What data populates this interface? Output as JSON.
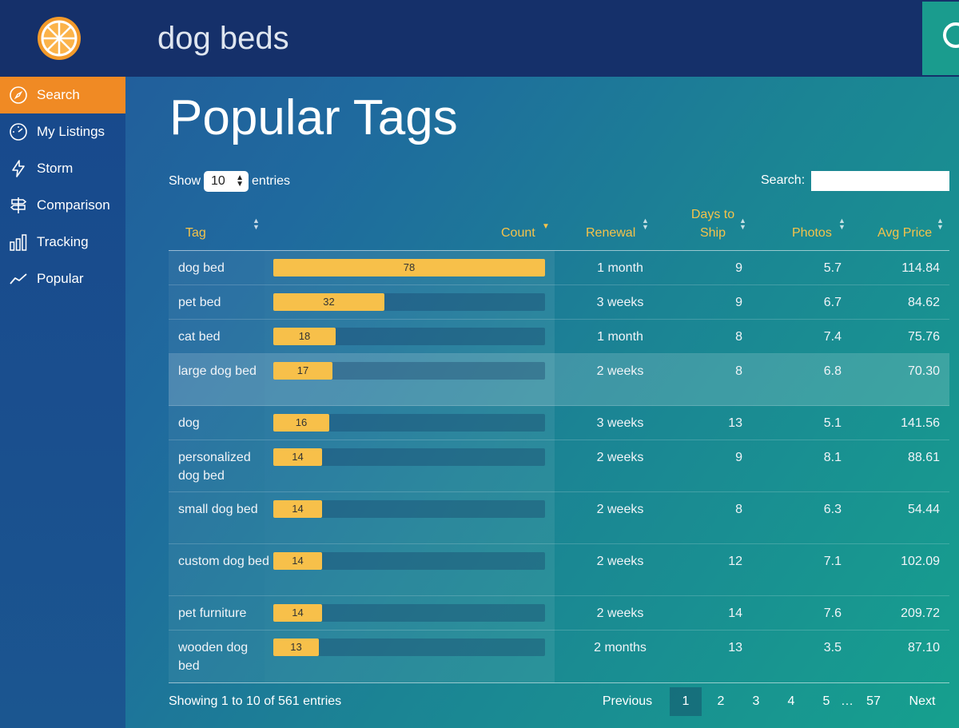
{
  "app": {
    "search_query": "dog beds"
  },
  "sidebar": {
    "items": [
      {
        "label": "Search",
        "icon": "compass-icon",
        "active": true
      },
      {
        "label": "My Listings",
        "icon": "speedometer-icon",
        "active": false
      },
      {
        "label": "Storm",
        "icon": "lightning-icon",
        "active": false
      },
      {
        "label": "Comparison",
        "icon": "signpost-icon",
        "active": false
      },
      {
        "label": "Tracking",
        "icon": "bar-chart-icon",
        "active": false
      },
      {
        "label": "Popular",
        "icon": "trend-line-icon",
        "active": false
      }
    ]
  },
  "page": {
    "title": "Popular Tags",
    "show_label": "Show",
    "entries_value": "10",
    "entries_label": "entries",
    "search_label": "Search:",
    "search_value": ""
  },
  "table": {
    "headers": {
      "tag": "Tag",
      "count": "Count",
      "renewal": "Renewal",
      "days_line1": "Days to",
      "days_line2": "Ship",
      "photos": "Photos",
      "avg_price": "Avg Price"
    },
    "max_count": 78,
    "rows": [
      {
        "tag": "dog bed",
        "count": 78,
        "count_label": "78",
        "renewal": "1 month",
        "days": "9",
        "photos": "5.7",
        "avg_price": "114.84"
      },
      {
        "tag": "pet bed",
        "count": 32,
        "count_label": "32",
        "renewal": "3 weeks",
        "days": "9",
        "photos": "6.7",
        "avg_price": "84.62"
      },
      {
        "tag": "cat bed",
        "count": 18,
        "count_label": "18",
        "renewal": "1 month",
        "days": "8",
        "photos": "7.4",
        "avg_price": "75.76"
      },
      {
        "tag": "large dog bed",
        "count": 17,
        "count_label": "17",
        "renewal": "2 weeks",
        "days": "8",
        "photos": "6.8",
        "avg_price": "70.30"
      },
      {
        "tag": "dog",
        "count": 16,
        "count_label": "16",
        "renewal": "3 weeks",
        "days": "13",
        "photos": "5.1",
        "avg_price": "141.56"
      },
      {
        "tag": "personalized dog bed",
        "count": 14,
        "count_label": "14",
        "renewal": "2 weeks",
        "days": "9",
        "photos": "8.1",
        "avg_price": "88.61"
      },
      {
        "tag": "small dog bed",
        "count": 14,
        "count_label": "14",
        "renewal": "2 weeks",
        "days": "8",
        "photos": "6.3",
        "avg_price": "54.44"
      },
      {
        "tag": "custom dog bed",
        "count": 14,
        "count_label": "14",
        "renewal": "2 weeks",
        "days": "12",
        "photos": "7.1",
        "avg_price": "102.09"
      },
      {
        "tag": "pet furniture",
        "count": 14,
        "count_label": "14",
        "renewal": "2 weeks",
        "days": "14",
        "photos": "7.6",
        "avg_price": "209.72"
      },
      {
        "tag": "wooden dog bed",
        "count": 13,
        "count_label": "13",
        "renewal": "2 months",
        "days": "13",
        "photos": "3.5",
        "avg_price": "87.10"
      }
    ]
  },
  "footer": {
    "info": "Showing 1 to 10 of 561 entries",
    "previous": "Previous",
    "next": "Next",
    "pages": [
      "1",
      "2",
      "3",
      "4",
      "5"
    ],
    "ellipsis": "…",
    "last_page": "57",
    "current_page": "1"
  },
  "colors": {
    "accent": "#f08a24",
    "bar": "#f7c04a",
    "header_text": "#f5c34a",
    "topbar": "#15306a"
  }
}
